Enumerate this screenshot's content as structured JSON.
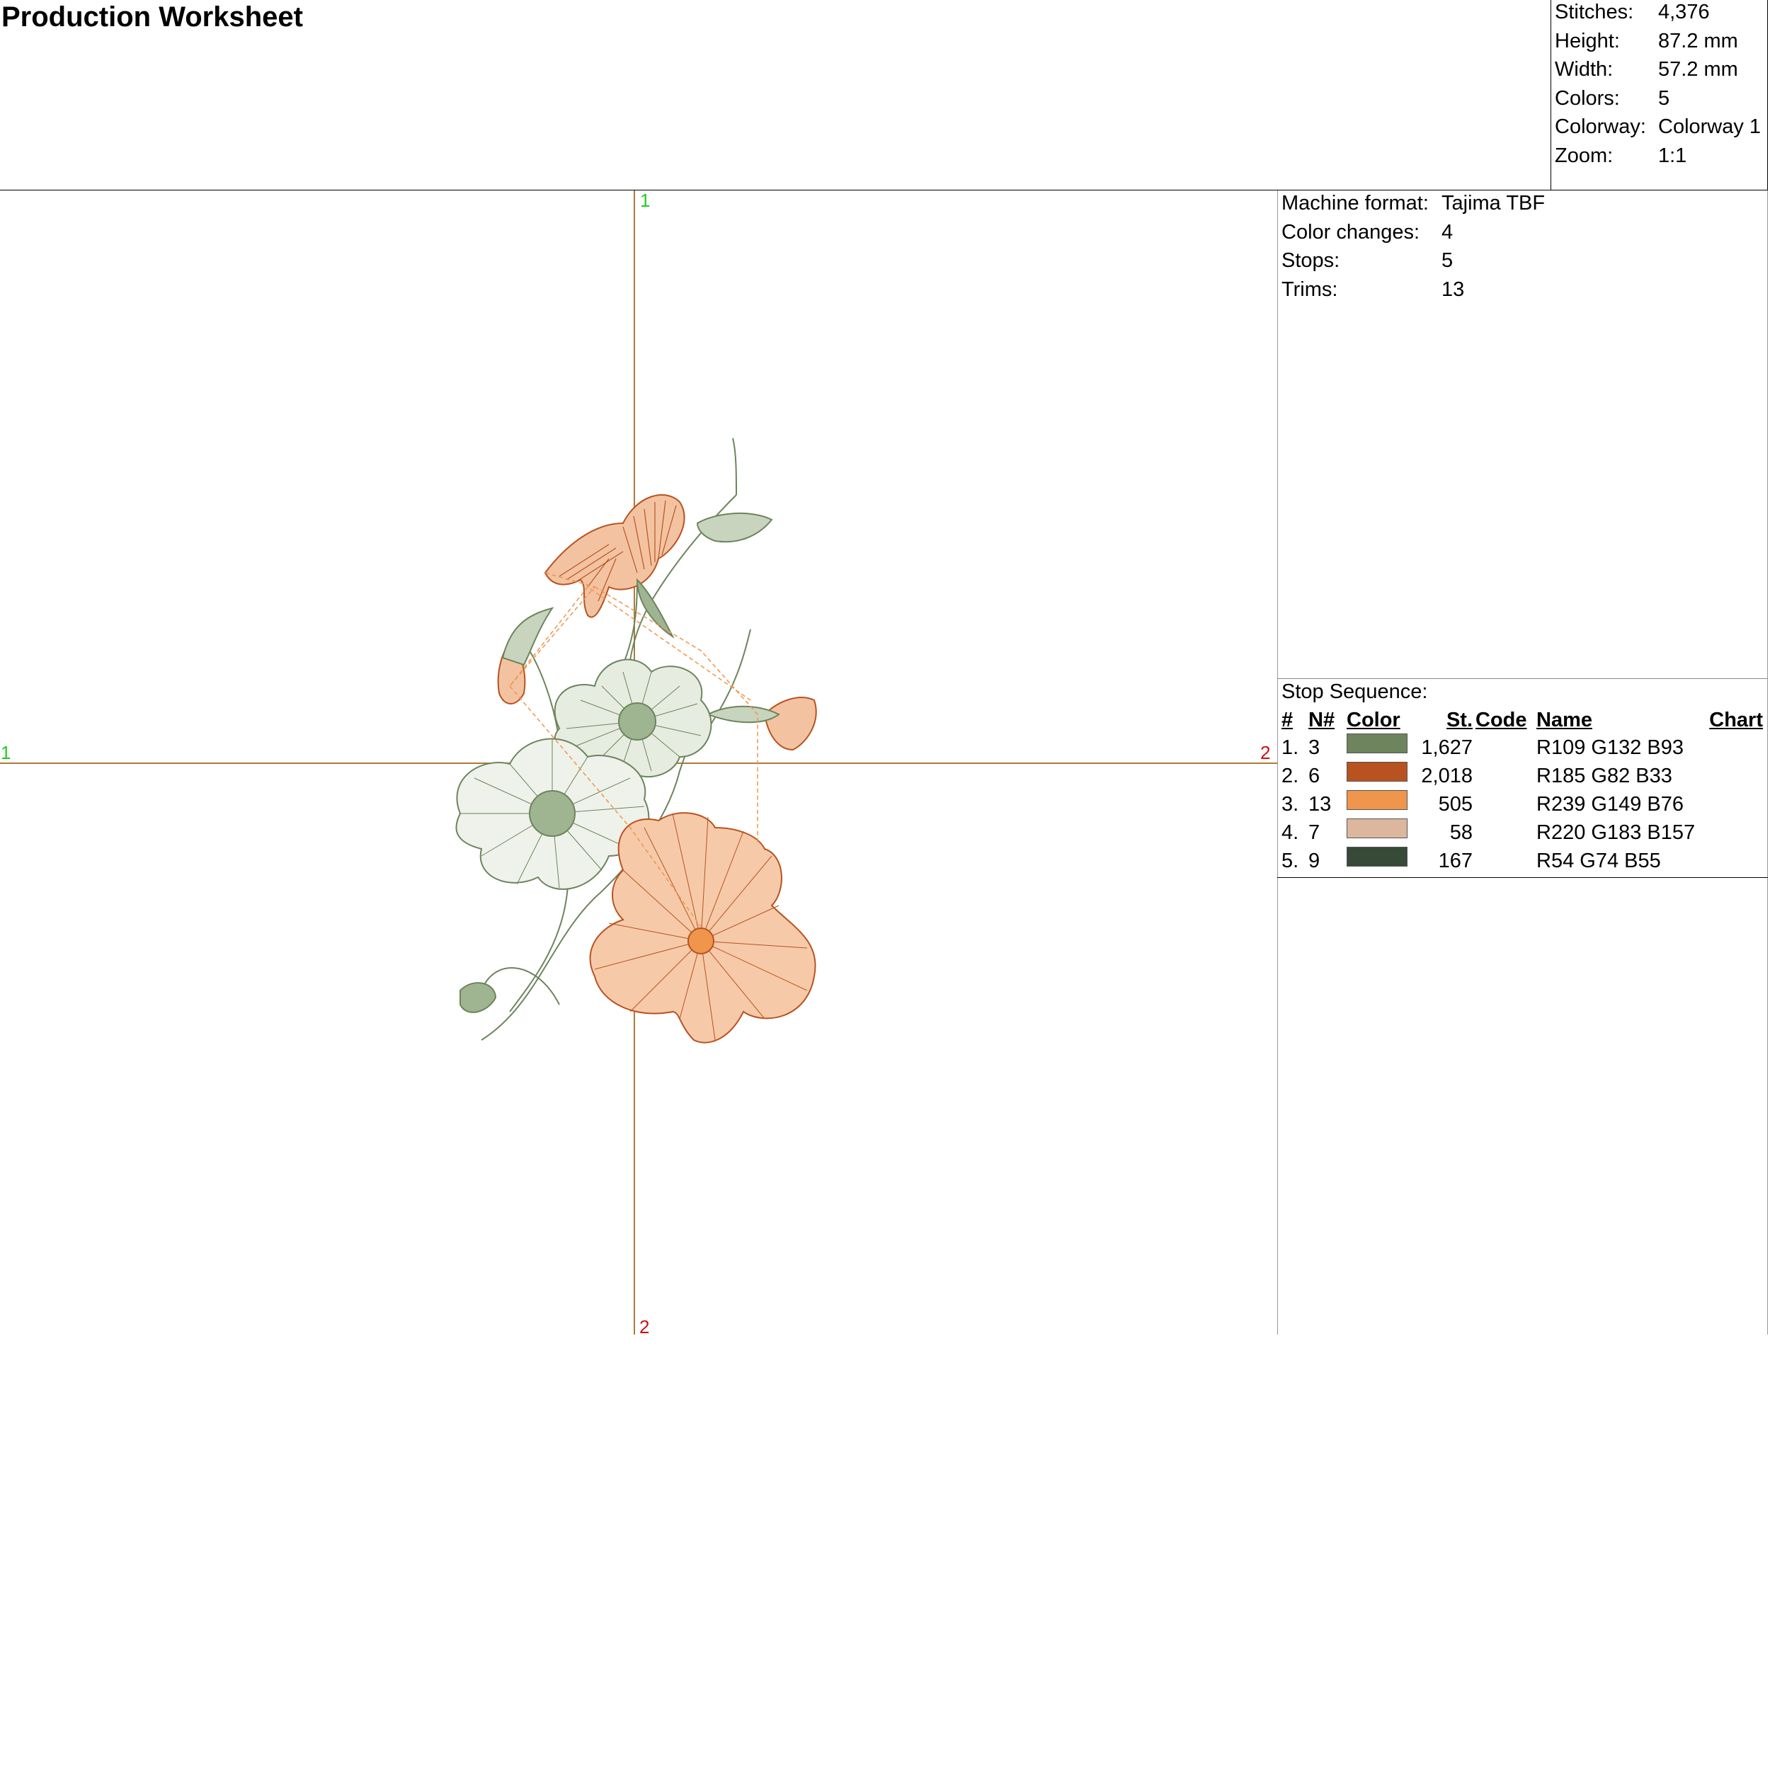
{
  "header": {
    "title": "Production Worksheet"
  },
  "summary": [
    {
      "label": "Stitches:",
      "value": "4,376"
    },
    {
      "label": "Height:",
      "value": "87.2 mm"
    },
    {
      "label": "Width:",
      "value": "57.2 mm"
    },
    {
      "label": "Colors:",
      "value": "5"
    },
    {
      "label": "Colorway:",
      "value": "Colorway 1"
    },
    {
      "label": "Zoom:",
      "value": "1:1"
    }
  ],
  "machine": [
    {
      "label": "Machine format:",
      "value": "Tajima TBF"
    },
    {
      "label": "Color changes:",
      "value": "4"
    },
    {
      "label": "Stops:",
      "value": "5"
    },
    {
      "label": "Trims:",
      "value": "13"
    }
  ],
  "stop_sequence": {
    "title": "Stop Sequence:",
    "headers": {
      "num": "#",
      "n": "N#",
      "color": "Color",
      "st": "St.",
      "code": "Code",
      "name": "Name",
      "chart": "Chart"
    },
    "rows": [
      {
        "num": "1.",
        "n": "3",
        "color": "#6d845d",
        "st": "1,627",
        "code": "",
        "name": "R109 G132 B93",
        "chart": ""
      },
      {
        "num": "2.",
        "n": "6",
        "color": "#b95221",
        "st": "2,018",
        "code": "",
        "name": "R185 G82 B33",
        "chart": ""
      },
      {
        "num": "3.",
        "n": "13",
        "color": "#ef954c",
        "st": "505",
        "code": "",
        "name": "R239 G149 B76",
        "chart": ""
      },
      {
        "num": "4.",
        "n": "7",
        "color": "#dcb79d",
        "st": "58",
        "code": "",
        "name": "R220 G183 B157",
        "chart": ""
      },
      {
        "num": "5.",
        "n": "9",
        "color": "#364a37",
        "st": "167",
        "code": "",
        "name": "R54 G74 B55",
        "chart": ""
      }
    ]
  },
  "axes": {
    "top": "1",
    "left": "1",
    "right": "2",
    "bottom": "2"
  },
  "colors": {
    "axis": "#b07a3a",
    "axis_start": "#22cc22",
    "axis_end": "#cc1111"
  }
}
